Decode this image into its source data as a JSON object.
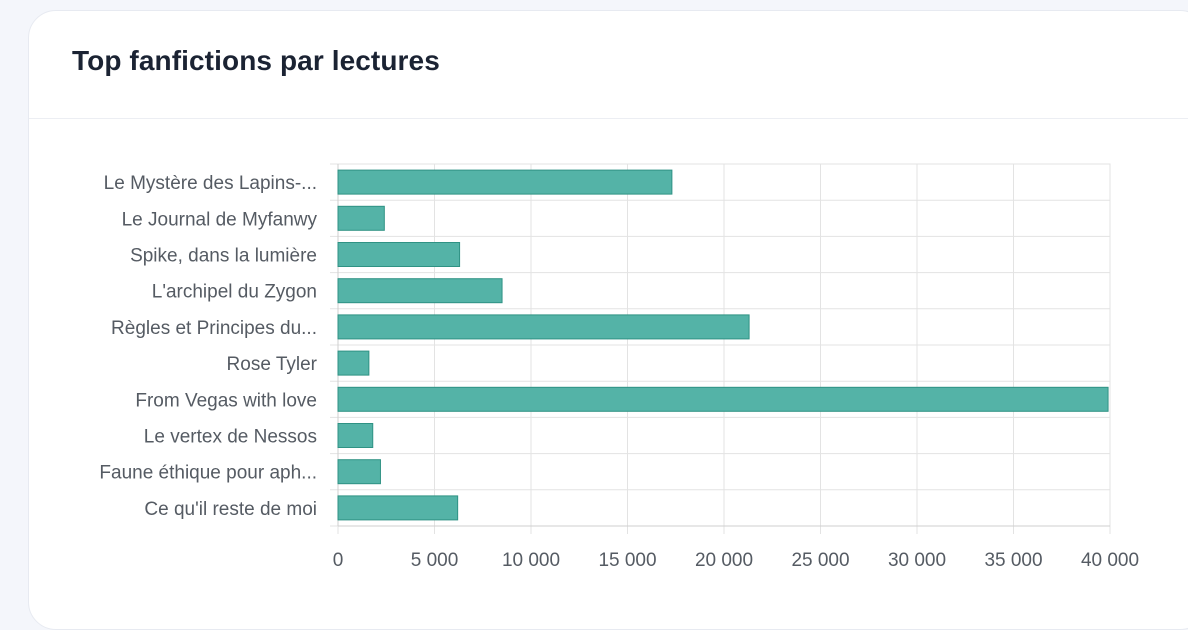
{
  "card": {
    "title": "Top fanfictions par lectures"
  },
  "chart_data": {
    "type": "bar",
    "orientation": "horizontal",
    "title": "Top fanfictions par lectures",
    "categories": [
      "Le Mystère des Lapins-...",
      "Le Journal de Myfanwy",
      "Spike, dans la lumière",
      "L'archipel du Zygon",
      "Règles et Principes du...",
      "Rose Tyler",
      "From Vegas with love",
      "Le vertex de Nessos",
      "Faune éthique pour aph...",
      "Ce qu'il reste de moi"
    ],
    "values": [
      17300,
      2400,
      6300,
      8500,
      21300,
      1600,
      39900,
      1800,
      2200,
      6200
    ],
    "xlim": [
      0,
      40000
    ],
    "xticks": [
      0,
      5000,
      10000,
      15000,
      20000,
      25000,
      30000,
      35000,
      40000
    ],
    "xtick_labels": [
      "0",
      "5 000",
      "10 000",
      "15 000",
      "20 000",
      "25 000",
      "30 000",
      "35 000",
      "40 000"
    ],
    "xlabel": "",
    "ylabel": "",
    "grid": true,
    "legend": "none",
    "bar_color": "#54b3a7",
    "bar_border_color": "#2f9284"
  }
}
